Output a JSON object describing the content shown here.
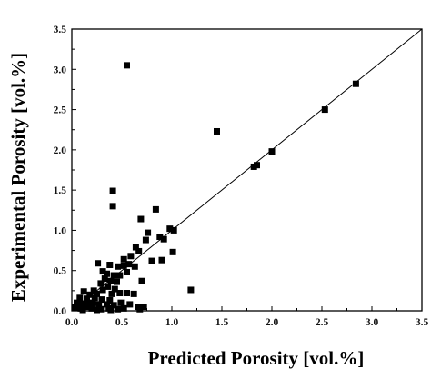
{
  "chart_data": {
    "type": "scatter",
    "title": "",
    "xlabel": "Predicted Porosity [vol.%]",
    "ylabel": "Experimental Porosity [vol.%]",
    "xlim": [
      0.0,
      3.5
    ],
    "ylim": [
      0.0,
      3.5
    ],
    "grid": false,
    "legend": "none",
    "marker": "filled-square",
    "x_ticks": [
      "0.0",
      "0.5",
      "1.0",
      "1.5",
      "2.0",
      "2.5",
      "3.0",
      "3.5"
    ],
    "y_ticks": [
      "0.0",
      "0.5",
      "1.0",
      "1.5",
      "2.0",
      "2.5",
      "3.0",
      "3.5"
    ],
    "reference_line": {
      "x": [
        0.0,
        3.5
      ],
      "y": [
        0.0,
        3.5
      ]
    },
    "colors": {
      "marker": "#000000",
      "axis": "#000000",
      "line": "#000000"
    },
    "series": [
      {
        "points": [
          [
            0.55,
            3.05
          ],
          [
            1.45,
            2.23
          ],
          [
            2.84,
            2.82
          ],
          [
            2.53,
            2.5
          ],
          [
            2.0,
            1.98
          ],
          [
            1.82,
            1.79
          ],
          [
            1.85,
            1.81
          ],
          [
            0.41,
            1.49
          ],
          [
            0.41,
            1.3
          ],
          [
            0.84,
            1.26
          ],
          [
            0.69,
            1.14
          ],
          [
            0.76,
            0.97
          ],
          [
            0.98,
            1.02
          ],
          [
            1.02,
            1.0
          ],
          [
            0.74,
            0.88
          ],
          [
            0.88,
            0.92
          ],
          [
            0.92,
            0.89
          ],
          [
            1.01,
            0.73
          ],
          [
            0.64,
            0.79
          ],
          [
            0.67,
            0.74
          ],
          [
            0.59,
            0.68
          ],
          [
            0.52,
            0.64
          ],
          [
            0.8,
            0.62
          ],
          [
            0.9,
            0.63
          ],
          [
            0.57,
            0.58
          ],
          [
            0.63,
            0.55
          ],
          [
            0.46,
            0.55
          ],
          [
            0.52,
            0.56
          ],
          [
            0.38,
            0.57
          ],
          [
            0.26,
            0.59
          ],
          [
            0.31,
            0.49
          ],
          [
            0.35,
            0.46
          ],
          [
            0.42,
            0.44
          ],
          [
            0.48,
            0.44
          ],
          [
            0.55,
            0.48
          ],
          [
            0.33,
            0.4
          ],
          [
            0.39,
            0.37
          ],
          [
            0.45,
            0.36
          ],
          [
            0.7,
            0.37
          ],
          [
            0.29,
            0.34
          ],
          [
            0.36,
            0.3
          ],
          [
            0.43,
            0.27
          ],
          [
            0.31,
            0.26
          ],
          [
            0.22,
            0.25
          ],
          [
            0.12,
            0.24
          ],
          [
            0.18,
            0.2
          ],
          [
            0.25,
            0.21
          ],
          [
            0.4,
            0.21
          ],
          [
            0.48,
            0.22
          ],
          [
            0.55,
            0.22
          ],
          [
            0.62,
            0.21
          ],
          [
            1.19,
            0.26
          ],
          [
            0.08,
            0.16
          ],
          [
            0.15,
            0.15
          ],
          [
            0.23,
            0.16
          ],
          [
            0.3,
            0.14
          ],
          [
            0.38,
            0.13
          ],
          [
            0.05,
            0.1
          ],
          [
            0.1,
            0.09
          ],
          [
            0.16,
            0.09
          ],
          [
            0.21,
            0.1
          ],
          [
            0.27,
            0.08
          ],
          [
            0.35,
            0.08
          ],
          [
            0.42,
            0.07
          ],
          [
            0.49,
            0.1
          ],
          [
            0.58,
            0.08
          ],
          [
            0.66,
            0.05
          ],
          [
            0.03,
            0.04
          ],
          [
            0.09,
            0.03
          ],
          [
            0.14,
            0.05
          ],
          [
            0.2,
            0.03
          ],
          [
            0.29,
            0.02
          ],
          [
            0.37,
            0.03
          ],
          [
            0.46,
            0.02
          ],
          [
            0.52,
            0.03
          ],
          [
            0.68,
            0.02
          ],
          [
            0.72,
            0.05
          ],
          [
            0.11,
            0.01
          ],
          [
            0.25,
            0.0
          ],
          [
            0.39,
            0.0
          ]
        ]
      }
    ]
  }
}
